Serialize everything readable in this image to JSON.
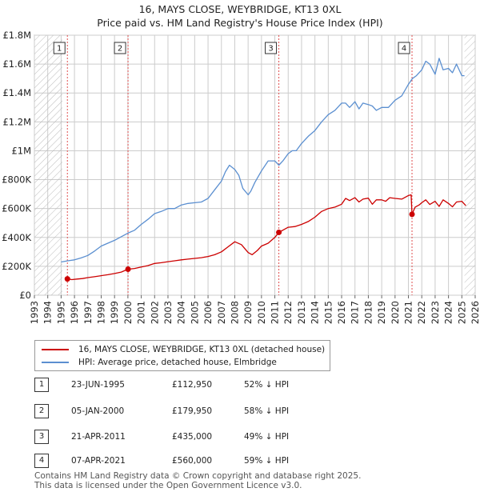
{
  "title_line1": "16, MAYS CLOSE, WEYBRIDGE, KT13 0XL",
  "title_line2": "Price paid vs. HM Land Registry's House Price Index (HPI)",
  "legend": {
    "red_label": "16, MAYS CLOSE, WEYBRIDGE, KT13 0XL (detached house)",
    "blue_label": "HPI: Average price, detached house, Elmbridge"
  },
  "colors": {
    "red": "#cc0000",
    "blue": "#5b8fd0",
    "grid": "#cccccc",
    "hatch": "#bbbbbb",
    "vline": "#e05050"
  },
  "sales": [
    {
      "num": "1",
      "date": "23-JUN-1995",
      "price": "£112,950",
      "hpi": "52% ↓ HPI"
    },
    {
      "num": "2",
      "date": "05-JAN-2000",
      "price": "£179,950",
      "hpi": "58% ↓ HPI"
    },
    {
      "num": "3",
      "date": "21-APR-2011",
      "price": "£435,000",
      "hpi": "49% ↓ HPI"
    },
    {
      "num": "4",
      "date": "07-APR-2021",
      "price": "£560,000",
      "hpi": "59% ↓ HPI"
    }
  ],
  "footer": {
    "line1": "Contains HM Land Registry data © Crown copyright and database right 2025.",
    "line2": "This data is licensed under the Open Government Licence v3.0."
  },
  "chart_data": {
    "type": "line",
    "title": "16, MAYS CLOSE, WEYBRIDGE, KT13 0XL",
    "subtitle": "Price paid vs. HM Land Registry's House Price Index (HPI)",
    "xlim": [
      1993,
      2026
    ],
    "ylim": [
      0,
      1800000
    ],
    "x_ticks": [
      1993,
      1994,
      1995,
      1996,
      1997,
      1998,
      1999,
      2000,
      2001,
      2002,
      2003,
      2004,
      2005,
      2006,
      2007,
      2008,
      2009,
      2010,
      2011,
      2012,
      2013,
      2014,
      2015,
      2016,
      2017,
      2018,
      2019,
      2020,
      2021,
      2022,
      2023,
      2024,
      2025,
      2026
    ],
    "y_ticks": [
      {
        "value": 0,
        "label": "£0"
      },
      {
        "value": 200000,
        "label": "£200K"
      },
      {
        "value": 400000,
        "label": "£400K"
      },
      {
        "value": 600000,
        "label": "£600K"
      },
      {
        "value": 800000,
        "label": "£800K"
      },
      {
        "value": 1000000,
        "label": "£1M"
      },
      {
        "value": 1200000,
        "label": "£1.2M"
      },
      {
        "value": 1400000,
        "label": "£1.4M"
      },
      {
        "value": 1600000,
        "label": "£1.6M"
      },
      {
        "value": 1800000,
        "label": "£1.8M"
      }
    ],
    "grid": true,
    "hatched_ranges": [
      [
        1993,
        1995.1
      ],
      [
        2025.2,
        2026
      ]
    ],
    "series": [
      {
        "name": "16, MAYS CLOSE, WEYBRIDGE, KT13 0XL (detached house)",
        "color": "#cc0000",
        "x": [
          1995.47,
          1995.8,
          1996.2,
          1996.6,
          1997.0,
          1997.5,
          1998.0,
          1998.5,
          1999.0,
          1999.5,
          2000.01,
          2000.5,
          2001.0,
          2001.5,
          2002.0,
          2002.5,
          2003.0,
          2003.5,
          2004.0,
          2004.5,
          2005.0,
          2005.5,
          2006.0,
          2006.5,
          2007.0,
          2007.5,
          2008.0,
          2008.5,
          2009.0,
          2009.3,
          2009.7,
          2010.0,
          2010.5,
          2011.0,
          2011.3,
          2011.7,
          2012.0,
          2012.5,
          2013.0,
          2013.5,
          2014.0,
          2014.5,
          2015.0,
          2015.5,
          2016.0,
          2016.3,
          2016.6,
          2017.0,
          2017.3,
          2017.6,
          2018.0,
          2018.3,
          2018.6,
          2019.0,
          2019.3,
          2019.6,
          2020.0,
          2020.5,
          2021.0,
          2021.2,
          2021.27,
          2021.5,
          2021.8,
          2022.0,
          2022.3,
          2022.6,
          2023.0,
          2023.3,
          2023.6,
          2024.0,
          2024.3,
          2024.6,
          2025.0,
          2025.3
        ],
        "values": [
          112950,
          108000,
          112000,
          115000,
          122000,
          128000,
          135000,
          142000,
          150000,
          160000,
          179950,
          185000,
          195000,
          205000,
          220000,
          225000,
          232000,
          238000,
          245000,
          250000,
          255000,
          260000,
          268000,
          280000,
          300000,
          335000,
          370000,
          350000,
          295000,
          280000,
          310000,
          340000,
          360000,
          400000,
          435000,
          455000,
          470000,
          475000,
          490000,
          510000,
          540000,
          580000,
          600000,
          610000,
          630000,
          670000,
          655000,
          675000,
          645000,
          665000,
          672000,
          630000,
          660000,
          660000,
          650000,
          675000,
          670000,
          665000,
          690000,
          695000,
          560000,
          610000,
          625000,
          640000,
          660000,
          628000,
          650000,
          615000,
          660000,
          635000,
          612000,
          645000,
          650000,
          620000
        ]
      },
      {
        "name": "HPI: Average price, detached house, Elmbridge",
        "color": "#5b8fd0",
        "x": [
          1995.0,
          1995.5,
          1996.0,
          1996.5,
          1997.0,
          1997.5,
          1998.0,
          1998.5,
          1999.0,
          1999.5,
          2000.0,
          2000.5,
          2001.0,
          2001.5,
          2002.0,
          2002.5,
          2003.0,
          2003.5,
          2004.0,
          2004.5,
          2005.0,
          2005.5,
          2006.0,
          2006.5,
          2007.0,
          2007.3,
          2007.6,
          2008.0,
          2008.3,
          2008.6,
          2009.0,
          2009.2,
          2009.5,
          2010.0,
          2010.5,
          2011.0,
          2011.3,
          2011.6,
          2012.0,
          2012.3,
          2012.6,
          2013.0,
          2013.5,
          2014.0,
          2014.5,
          2015.0,
          2015.5,
          2016.0,
          2016.3,
          2016.6,
          2017.0,
          2017.3,
          2017.6,
          2018.0,
          2018.3,
          2018.6,
          2019.0,
          2019.5,
          2020.0,
          2020.5,
          2021.0,
          2021.3,
          2021.6,
          2022.0,
          2022.3,
          2022.6,
          2023.0,
          2023.3,
          2023.6,
          2024.0,
          2024.3,
          2024.6,
          2025.0,
          2025.2
        ],
        "values": [
          230000,
          238000,
          245000,
          258000,
          275000,
          305000,
          340000,
          360000,
          380000,
          405000,
          430000,
          450000,
          490000,
          525000,
          565000,
          580000,
          600000,
          600000,
          625000,
          635000,
          640000,
          645000,
          670000,
          730000,
          790000,
          855000,
          900000,
          870000,
          830000,
          740000,
          695000,
          720000,
          780000,
          860000,
          930000,
          930000,
          900000,
          930000,
          980000,
          1000000,
          1000000,
          1050000,
          1100000,
          1140000,
          1200000,
          1250000,
          1280000,
          1330000,
          1330000,
          1300000,
          1340000,
          1290000,
          1330000,
          1320000,
          1310000,
          1280000,
          1300000,
          1300000,
          1350000,
          1380000,
          1460000,
          1500000,
          1520000,
          1560000,
          1620000,
          1600000,
          1530000,
          1640000,
          1560000,
          1570000,
          1540000,
          1600000,
          1520000,
          1520000
        ]
      }
    ],
    "sale_markers": [
      {
        "label": "1",
        "x": 1995.47,
        "value": 112950
      },
      {
        "label": "2",
        "x": 2000.01,
        "value": 179950
      },
      {
        "label": "3",
        "x": 2011.3,
        "value": 435000
      },
      {
        "label": "4",
        "x": 2021.27,
        "value": 560000
      }
    ]
  }
}
